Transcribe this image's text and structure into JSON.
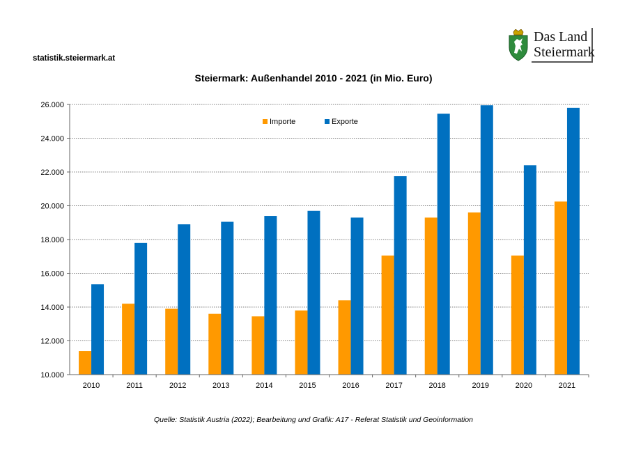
{
  "header": {
    "source_url": "statistik.steiermark.at",
    "logo": {
      "line1": "Das Land",
      "line2": "Steiermark",
      "icon": "steiermark-coat-of-arms-icon"
    }
  },
  "footer": {
    "source_note": "Quelle: Statistik Austria (2022); Bearbeitung und Grafik: A17 - Referat Statistik und Geoinformation"
  },
  "colors": {
    "importe": "#FF9900",
    "exporte": "#0070C0",
    "logo_green": "#2E8B3C"
  },
  "chart_data": {
    "type": "bar",
    "title": "Steiermark: Außenhandel 2010 - 2021 (in Mio. Euro)",
    "xlabel": "",
    "ylabel": "",
    "categories": [
      "2010",
      "2011",
      "2012",
      "2013",
      "2014",
      "2015",
      "2016",
      "2017",
      "2018",
      "2019",
      "2020",
      "2021"
    ],
    "series": [
      {
        "name": "Importe",
        "values": [
          11400,
          14200,
          13900,
          13600,
          13450,
          13800,
          14400,
          17050,
          19300,
          19600,
          17050,
          20250
        ]
      },
      {
        "name": "Exporte",
        "values": [
          15350,
          17800,
          18900,
          19050,
          19400,
          19700,
          19300,
          21750,
          25450,
          25950,
          22400,
          25800
        ]
      }
    ],
    "ylim": [
      10000,
      26000
    ],
    "yticks": [
      "10.000",
      "12.000",
      "14.000",
      "16.000",
      "18.000",
      "20.000",
      "22.000",
      "24.000",
      "26.000"
    ],
    "ytick_values": [
      10000,
      12000,
      14000,
      16000,
      18000,
      20000,
      22000,
      24000,
      26000
    ],
    "grid": true,
    "legend_position": "top-center"
  }
}
